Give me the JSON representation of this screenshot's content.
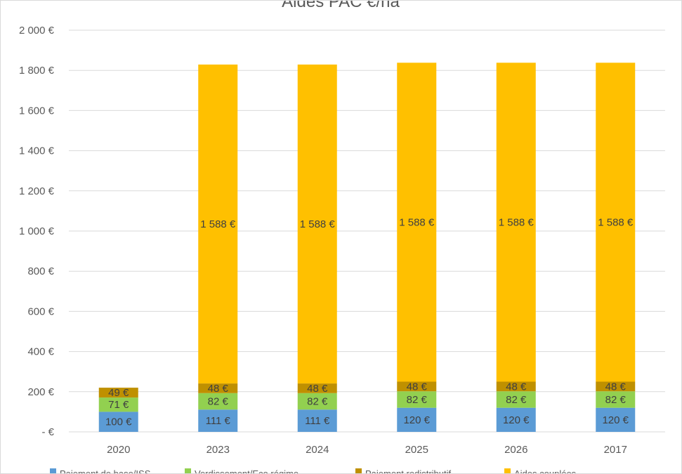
{
  "chart_data": {
    "type": "bar",
    "stacked": true,
    "title": "Aides PAC €/ha",
    "categories": [
      "2020",
      "2023",
      "2024",
      "2025",
      "2026",
      "2017"
    ],
    "series": [
      {
        "values": [
          100,
          111,
          111,
          120,
          120,
          120
        ],
        "labels": [
          "100 €",
          "111 €",
          "111 €",
          "120 €",
          "120 €",
          "120 €"
        ],
        "color": "#5b9bd5"
      },
      {
        "values": [
          71,
          82,
          82,
          82,
          82,
          82
        ],
        "labels": [
          "71 €",
          "82 €",
          "82 €",
          "82 €",
          "82 €",
          "82 €"
        ],
        "color": "#92d050"
      },
      {
        "values": [
          49,
          48,
          48,
          48,
          48,
          48
        ],
        "labels": [
          "49 €",
          "48 €",
          "48 €",
          "48 €",
          "48 €",
          "48 €"
        ],
        "color": "#bf9000"
      },
      {
        "values": [
          0,
          1588,
          1588,
          1588,
          1588,
          1588
        ],
        "labels": [
          "",
          "1 588 €",
          "1 588 €",
          "1 588 €",
          "1 588 €",
          "1 588 €"
        ],
        "color": "#ffc000"
      }
    ],
    "ylim": [
      0,
      2000
    ],
    "yticks": [
      0,
      200,
      400,
      600,
      800,
      1000,
      1200,
      1400,
      1600,
      1800,
      2000
    ],
    "ytick_labels": [
      "-  €",
      "200 €",
      "400 €",
      "600 €",
      "800 €",
      "1 000 €",
      "1 200 €",
      "1 400 €",
      "1 600 €",
      "1 800 €",
      "2 000 €"
    ],
    "grid": true,
    "gridline_color": "#d9d9d9",
    "legend": {
      "position": "bottom",
      "entries": [
        "Paiement de base/ISS",
        "Verdissement/Eco régime",
        "Paiement redistributif",
        "Aides couplées"
      ]
    }
  }
}
